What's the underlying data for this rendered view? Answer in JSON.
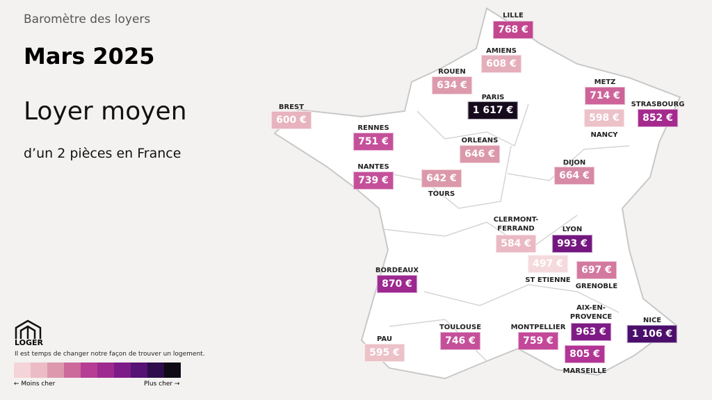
{
  "header": {
    "kicker": "Baromètre des loyers",
    "date": "Mars 2025",
    "title": "Loyer moyen",
    "subtitle": "d’un 2 pièces en France"
  },
  "cities": [
    {
      "name": "LILLE",
      "price": "768 €",
      "color": "#c2478f"
    },
    {
      "name": "AMIENS",
      "price": "608 €",
      "color": "#e5aebb"
    },
    {
      "name": "ROUEN",
      "price": "634 €",
      "color": "#dd9aad"
    },
    {
      "name": "PARIS",
      "price": "1 617 €",
      "color": "#150b1c"
    },
    {
      "name": "METZ",
      "price": "714 €",
      "color": "#cd6499"
    },
    {
      "name": "STRASBOURG",
      "price": "852 €",
      "color": "#a52a8e"
    },
    {
      "name": "NANCY",
      "price": "598 €",
      "color": "#ecc1c8"
    },
    {
      "name": "BREST",
      "price": "600 €",
      "color": "#e7b3be"
    },
    {
      "name": "RENNES",
      "price": "751 €",
      "color": "#c5509a"
    },
    {
      "name": "ORLEANS",
      "price": "646 €",
      "color": "#dc98ab"
    },
    {
      "name": "NANTES",
      "price": "739 €",
      "color": "#c5509a"
    },
    {
      "name": "TOURS",
      "price": "642 €",
      "color": "#dc98ab"
    },
    {
      "name": "DIJON",
      "price": "664 €",
      "color": "#d68aa6"
    },
    {
      "name": "CLERMONT-FERRAND",
      "price": "584 €",
      "color": "#eab9c3"
    },
    {
      "name": "LYON",
      "price": "993 €",
      "color": "#74177f"
    },
    {
      "name": "ST ETIENNE",
      "price": "497 €",
      "color": "#f5dadd"
    },
    {
      "name": "GRENOBLE",
      "price": "697 €",
      "color": "#d3799f"
    },
    {
      "name": "BORDEAUX",
      "price": "870 €",
      "color": "#9c2890"
    },
    {
      "name": "AIX-EN-PROVENCE",
      "price": "963 €",
      "color": "#7e1b86"
    },
    {
      "name": "NICE",
      "price": "1 106 €",
      "color": "#4b0f6b"
    },
    {
      "name": "TOULOUSE",
      "price": "746 €",
      "color": "#c5509a"
    },
    {
      "name": "MONTPELLIER",
      "price": "759 €",
      "color": "#c3489a"
    },
    {
      "name": "PAU",
      "price": "595 €",
      "color": "#ecc1c8"
    },
    {
      "name": "MARSEILLE",
      "price": "805 €",
      "color": "#b23595"
    }
  ],
  "legend": {
    "brand": "LOGER",
    "tagline": "Il est temps de changer notre façon de trouver un logement.",
    "low": "← Moins cher",
    "high": "Plus cher →",
    "colors": [
      "#f4d4d7",
      "#ebbcc5",
      "#dd98ad",
      "#cc6a9c",
      "#b63d93",
      "#9e2a90",
      "#7d1c88",
      "#561274",
      "#2f0d4a",
      "#0f0a16"
    ]
  }
}
